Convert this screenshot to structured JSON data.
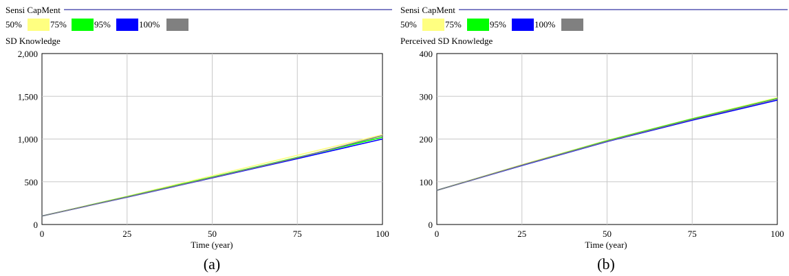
{
  "chart_data": [
    {
      "type": "line",
      "panel_label": "(a)",
      "header": "Sensi CapMent",
      "ylabel": "SD Knowledge",
      "xlabel": "Time (year)",
      "xlim": [
        0,
        100
      ],
      "ylim": [
        0,
        2000
      ],
      "x_ticks": [
        "0",
        "25",
        "50",
        "75",
        "100"
      ],
      "y_ticks": [
        "0",
        "500",
        "1,000",
        "1,500",
        "2,000"
      ],
      "grid": true,
      "legend": [
        {
          "label": "50%",
          "color": "#ffff80"
        },
        {
          "label": "75%",
          "color": "#00ff00"
        },
        {
          "label": "95%",
          "color": "#0000ff"
        },
        {
          "label": "100%",
          "color": "#808080"
        }
      ],
      "series": [
        {
          "name": "50%",
          "color": "#ffff80",
          "x": [
            0,
            25,
            50,
            75,
            100
          ],
          "y": [
            100,
            330,
            570,
            810,
            1050
          ]
        },
        {
          "name": "75%",
          "color": "#00ff00",
          "x": [
            0,
            25,
            50,
            75,
            100
          ],
          "y": [
            100,
            325,
            555,
            785,
            1020
          ]
        },
        {
          "name": "95%",
          "color": "#0000ff",
          "x": [
            0,
            25,
            50,
            75,
            100
          ],
          "y": [
            100,
            320,
            545,
            770,
            1000
          ]
        },
        {
          "name": "100%",
          "color": "#808080",
          "x": [
            0,
            25,
            50,
            75,
            100
          ],
          "y": [
            100,
            322,
            550,
            780,
            1040
          ]
        }
      ]
    },
    {
      "type": "line",
      "panel_label": "(b)",
      "header": "Sensi CapMent",
      "ylabel": "Perceived SD Knowledge",
      "xlabel": "Time (year)",
      "xlim": [
        0,
        100
      ],
      "ylim": [
        0,
        400
      ],
      "x_ticks": [
        "0",
        "25",
        "50",
        "75",
        "100"
      ],
      "y_ticks": [
        "0",
        "100",
        "200",
        "300",
        "400"
      ],
      "grid": true,
      "legend": [
        {
          "label": "50%",
          "color": "#ffff80"
        },
        {
          "label": "75%",
          "color": "#00ff00"
        },
        {
          "label": "95%",
          "color": "#0000ff"
        },
        {
          "label": "100%",
          "color": "#808080"
        }
      ],
      "series": [
        {
          "name": "50%",
          "color": "#ffff80",
          "x": [
            0,
            25,
            50,
            75,
            100
          ],
          "y": [
            80,
            140,
            197,
            248,
            297
          ]
        },
        {
          "name": "75%",
          "color": "#00ff00",
          "x": [
            0,
            25,
            50,
            75,
            100
          ],
          "y": [
            80,
            139,
            196,
            247,
            295
          ]
        },
        {
          "name": "95%",
          "color": "#0000ff",
          "x": [
            0,
            25,
            50,
            75,
            100
          ],
          "y": [
            80,
            138,
            194,
            244,
            291
          ]
        },
        {
          "name": "100%",
          "color": "#808080",
          "x": [
            0,
            25,
            50,
            75,
            100
          ],
          "y": [
            80,
            139,
            195,
            246,
            294
          ]
        }
      ]
    }
  ]
}
